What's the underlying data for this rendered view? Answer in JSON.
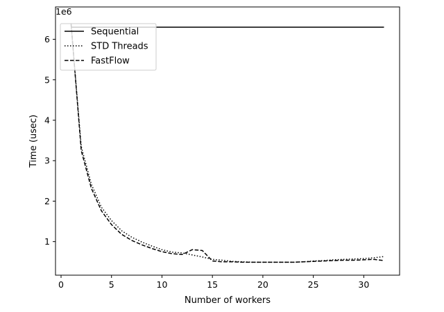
{
  "chart_data": {
    "type": "line",
    "title": "",
    "xlabel": "Number of workers",
    "ylabel": "Time (usec)",
    "y_offset_text": "1e6",
    "xlim": [
      -0.55,
      33.55
    ],
    "ylim": [
      170000,
      6800000
    ],
    "x_ticks": [
      0,
      5,
      10,
      15,
      20,
      25,
      30
    ],
    "x_tick_labels": [
      "0",
      "5",
      "10",
      "15",
      "20",
      "25",
      "30"
    ],
    "y_ticks": [
      1000000,
      2000000,
      3000000,
      4000000,
      5000000,
      6000000
    ],
    "y_tick_labels": [
      "1",
      "2",
      "3",
      "4",
      "5",
      "6"
    ],
    "grid": false,
    "legend_position": "top-left",
    "series": [
      {
        "name": "Sequential",
        "style": "solid",
        "color": "#000000",
        "x": [
          1,
          32
        ],
        "y": [
          6300000,
          6300000
        ]
      },
      {
        "name": "STD Threads",
        "style": "dotted",
        "color": "#000000",
        "x": [
          1,
          2,
          3,
          4,
          5,
          6,
          7,
          8,
          9,
          10,
          11,
          12,
          13,
          14,
          15,
          16,
          17,
          18,
          19,
          20,
          21,
          22,
          23,
          24,
          25,
          26,
          27,
          28,
          29,
          30,
          31,
          32
        ],
        "y": [
          6350000,
          3350000,
          2420000,
          1850000,
          1520000,
          1270000,
          1110000,
          990000,
          890000,
          800000,
          740000,
          720000,
          670000,
          620000,
          560000,
          540000,
          510000,
          500000,
          490000,
          490000,
          490000,
          490000,
          490000,
          500000,
          520000,
          530000,
          550000,
          560000,
          570000,
          580000,
          600000,
          630000
        ]
      },
      {
        "name": "FastFlow",
        "style": "dashed",
        "color": "#000000",
        "x": [
          1,
          2,
          3,
          4,
          5,
          6,
          7,
          8,
          9,
          10,
          11,
          12,
          13,
          14,
          15,
          16,
          17,
          18,
          19,
          20,
          21,
          22,
          23,
          24,
          25,
          26,
          27,
          28,
          29,
          30,
          31,
          32
        ],
        "y": [
          6380000,
          3250000,
          2320000,
          1760000,
          1420000,
          1180000,
          1030000,
          920000,
          830000,
          750000,
          700000,
          680000,
          800000,
          780000,
          520000,
          500000,
          500000,
          490000,
          490000,
          490000,
          490000,
          490000,
          490000,
          500000,
          510000,
          520000,
          530000,
          540000,
          540000,
          550000,
          560000,
          530000
        ]
      }
    ]
  }
}
